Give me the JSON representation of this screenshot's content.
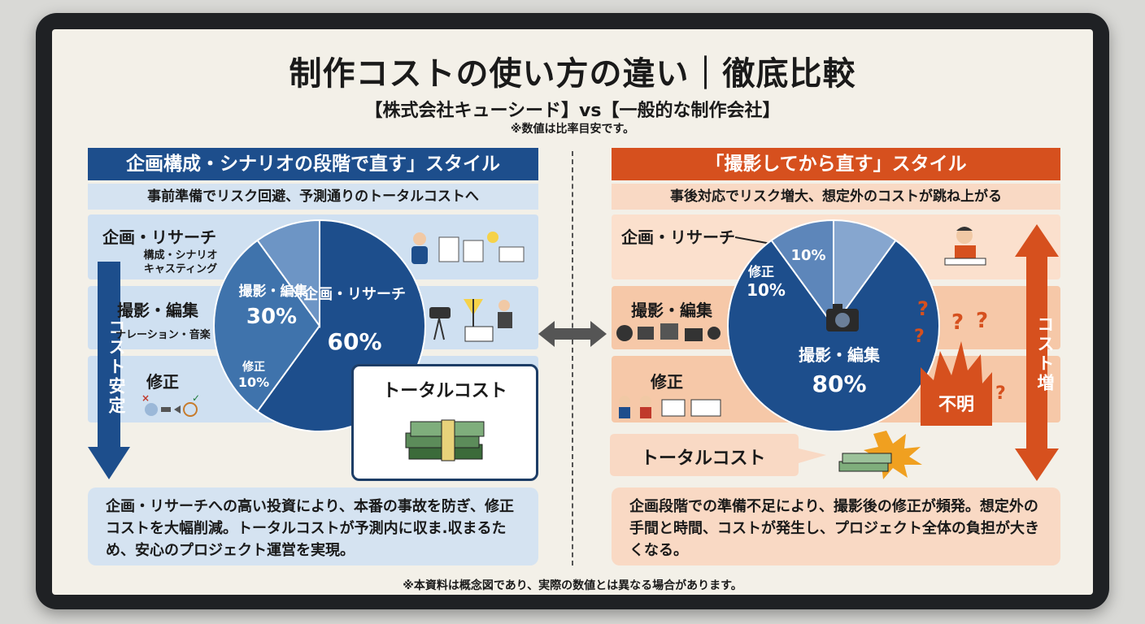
{
  "title": "制作コストの使い方の違い｜徹底比較",
  "subtitle": "【株式会社キューシード】vs【一般的な制作会社】",
  "note_top": "※数値は比率目安です。",
  "footnote": "※本資料は概念図であり、実際の数値とは異なる場合があります。",
  "left": {
    "header": "企画構成・シナリオの段階で直す」スタイル",
    "subheader": "事前準備でリスク回避、予測通りのトータルコストへ",
    "rows": [
      {
        "label": "企画・リサーチ",
        "sub": [
          "構成・シナリオ",
          "キャスティング"
        ]
      },
      {
        "label": "撮影・編集",
        "sub": [
          "ナレーション・音楽"
        ]
      },
      {
        "label": "修正",
        "sub": []
      }
    ],
    "arrow_label": "コスト安定",
    "total_label": "トータルコスト",
    "description": "企画・リサーチへの高い投資により、本番の事故を防ぎ、修正コストを大幅削減。トータルコストが予測内に収ま.収まるため、安心のプロジェクト運営を実現。",
    "pie": [
      {
        "label": "企画・リサーチ",
        "value": 60,
        "text": "60%",
        "color": "#1d4e8c"
      },
      {
        "label": "撮影・編集",
        "value": 30,
        "text": "30%",
        "color": "#3f73ac"
      },
      {
        "label": "修正",
        "value": 10,
        "text": "10%",
        "color": "#6d95c5"
      }
    ]
  },
  "right": {
    "header": "「撮影してから直す」スタイル",
    "subheader": "事後対応でリスク増大、想定外のコストが跳ね上がる",
    "rows": [
      {
        "label": "企画・リサーチ"
      },
      {
        "label": "撮影・編集"
      },
      {
        "label": "修正"
      }
    ],
    "arrow_label": "コスト増",
    "total_label": "トータルコスト",
    "unknown_label": "不明",
    "description": "企画段階での準備不足により、撮影後の修正が頻発。想定外の手間と時間、コストが発生し、プロジェクト全体の負担が大きくなる。",
    "pie": [
      {
        "label": "撮影・編集",
        "value": 80,
        "text": "80%",
        "color": "#1d4e8c"
      },
      {
        "label": "修正",
        "value": 10,
        "text": "10%",
        "color": "#5d86ba"
      },
      {
        "label": "企画・リサーチ",
        "value": 10,
        "text": "10%",
        "color": "#86a6cf"
      }
    ]
  },
  "colors": {
    "blue": "#1d4e8c",
    "orange": "#d6501e",
    "cream": "#f3f0e8"
  }
}
